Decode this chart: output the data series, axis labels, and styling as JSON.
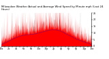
{
  "title": "Milwaukee Weather Actual and Average Wind Speed by Minute mph (Last 24 Hours)",
  "background_color": "#ffffff",
  "plot_background": "#ffffff",
  "grid_color": "#bbbbbb",
  "actual_color": "#ff0000",
  "average_color": "#0000cc",
  "ylim": [
    0,
    25
  ],
  "xlim": [
    0,
    1440
  ],
  "n_points": 1440,
  "title_fontsize": 2.8,
  "tick_fontsize": 2.4,
  "avg_linewidth": 0.55,
  "dpi": 100,
  "yticks": [
    0,
    5,
    10,
    15,
    20,
    25
  ],
  "n_vgrid": 7,
  "seed": 42
}
